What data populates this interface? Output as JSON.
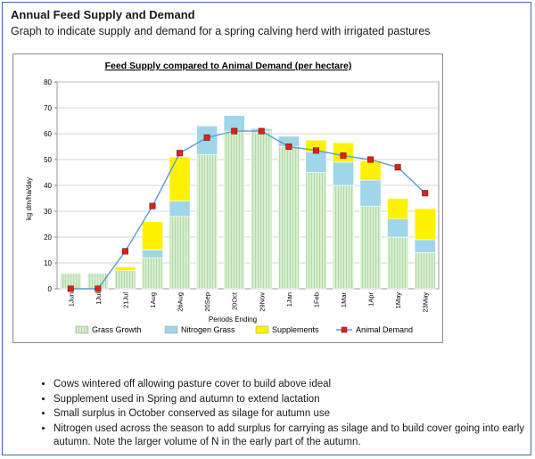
{
  "header": {
    "title": "Annual Feed Supply and Demand",
    "subtitle": "Graph to indicate supply and demand for a spring calving herd with irrigated pastures"
  },
  "chart_data": {
    "type": "bar",
    "stacked": true,
    "title": "Feed Supply compared to Animal Demand (per hectare)",
    "xlabel": "Periods Ending",
    "ylabel": "kg dm/ha/day",
    "ylim": [
      0,
      80
    ],
    "yticks": [
      0,
      10,
      20,
      30,
      40,
      50,
      60,
      70,
      80
    ],
    "grid": true,
    "legend": "bottom",
    "categories": [
      "1Jun",
      "1Jul",
      "21Jul",
      "1Aug",
      "26Aug",
      "20Sep",
      "20Oct",
      "29Nov",
      "1Jan",
      "1Feb",
      "1Mar",
      "1Apr",
      "1May",
      "23May"
    ],
    "series": [
      {
        "name": "Grass Growth",
        "color": "#c9e8c2",
        "values": [
          6,
          6,
          7,
          12,
          28,
          52,
          61,
          61,
          55,
          45,
          40,
          32,
          20,
          14
        ]
      },
      {
        "name": "Nitrogen Grass",
        "color": "#9fd6ea",
        "values": [
          0,
          0,
          0,
          3,
          6,
          11,
          6,
          1,
          4,
          8,
          9,
          10,
          7,
          5
        ]
      },
      {
        "name": "Supplements",
        "color": "#fff200",
        "values": [
          0,
          0,
          1.5,
          11,
          17,
          0,
          0,
          0,
          0,
          4.5,
          7.5,
          7.5,
          8,
          12
        ]
      }
    ],
    "line": {
      "name": "Animal Demand",
      "color": "#5b9bd5",
      "marker": "#e0201b",
      "values": [
        0,
        0,
        14.5,
        32,
        52.5,
        58.5,
        61,
        61,
        55,
        53.5,
        51.5,
        50,
        47,
        37
      ]
    }
  },
  "notes": [
    "Cows wintered off allowing pasture cover to build above ideal",
    "Supplement used in Spring and autumn to extend lactation",
    "Small surplus in October conserved as silage for autumn use",
    "Nitrogen used across the season to add surplus for carrying as silage and to build cover going into early autumn. Note the larger volume of N in the early part of the autumn."
  ]
}
